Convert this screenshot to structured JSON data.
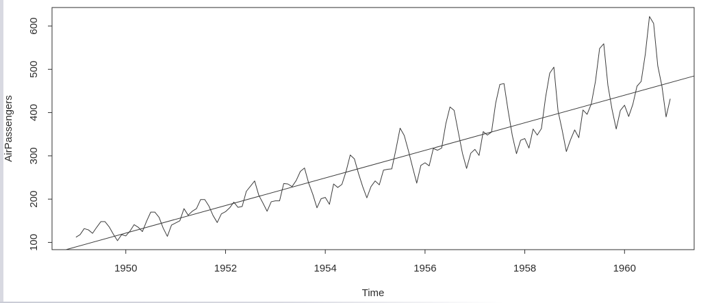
{
  "colors": {
    "background": "#ffffff",
    "window_border": "#d8d9e1",
    "axis_ink": "#2f2f2f",
    "line_ink": "#3a3a3a",
    "text_ink": "#2b2b2b"
  },
  "chart_data": {
    "type": "line",
    "title": "",
    "xlabel": "Time",
    "ylabel": "AirPassengers",
    "x_ticks": [
      1950,
      1952,
      1954,
      1956,
      1958,
      1960
    ],
    "y_ticks": [
      100,
      200,
      300,
      400,
      500,
      600
    ],
    "xlim": [
      1948.521,
      1961.396
    ],
    "ylim": [
      83.28,
      642.72
    ],
    "grid": false,
    "box": true,
    "legend": null,
    "series": [
      {
        "name": "AirPassengers monthly totals",
        "kind": "monthly_time_series",
        "start": 1949,
        "frequency": 12,
        "values": [
          112,
          118,
          132,
          129,
          121,
          135,
          148,
          148,
          136,
          119,
          104,
          118,
          115,
          126,
          141,
          135,
          125,
          149,
          170,
          170,
          158,
          133,
          114,
          140,
          145,
          150,
          178,
          163,
          172,
          178,
          199,
          199,
          184,
          162,
          146,
          166,
          171,
          180,
          193,
          181,
          183,
          218,
          230,
          242,
          209,
          191,
          172,
          194,
          196,
          196,
          236,
          235,
          229,
          243,
          264,
          272,
          237,
          211,
          180,
          201,
          204,
          188,
          235,
          227,
          234,
          264,
          302,
          293,
          259,
          229,
          203,
          229,
          242,
          233,
          267,
          269,
          270,
          315,
          364,
          347,
          312,
          274,
          237,
          278,
          284,
          277,
          317,
          313,
          318,
          374,
          413,
          405,
          355,
          306,
          271,
          306,
          315,
          301,
          356,
          348,
          355,
          422,
          465,
          467,
          404,
          347,
          305,
          336,
          340,
          318,
          362,
          348,
          363,
          435,
          491,
          505,
          404,
          359,
          310,
          337,
          360,
          342,
          406,
          396,
          420,
          472,
          548,
          559,
          463,
          407,
          362,
          405,
          417,
          391,
          419,
          461,
          472,
          535,
          622,
          606,
          508,
          461,
          390,
          432
        ]
      },
      {
        "name": "linear trend line",
        "kind": "segment",
        "x": [
          1948.8,
          1961.396
        ],
        "y": [
          83.3,
          484.6
        ]
      }
    ]
  }
}
